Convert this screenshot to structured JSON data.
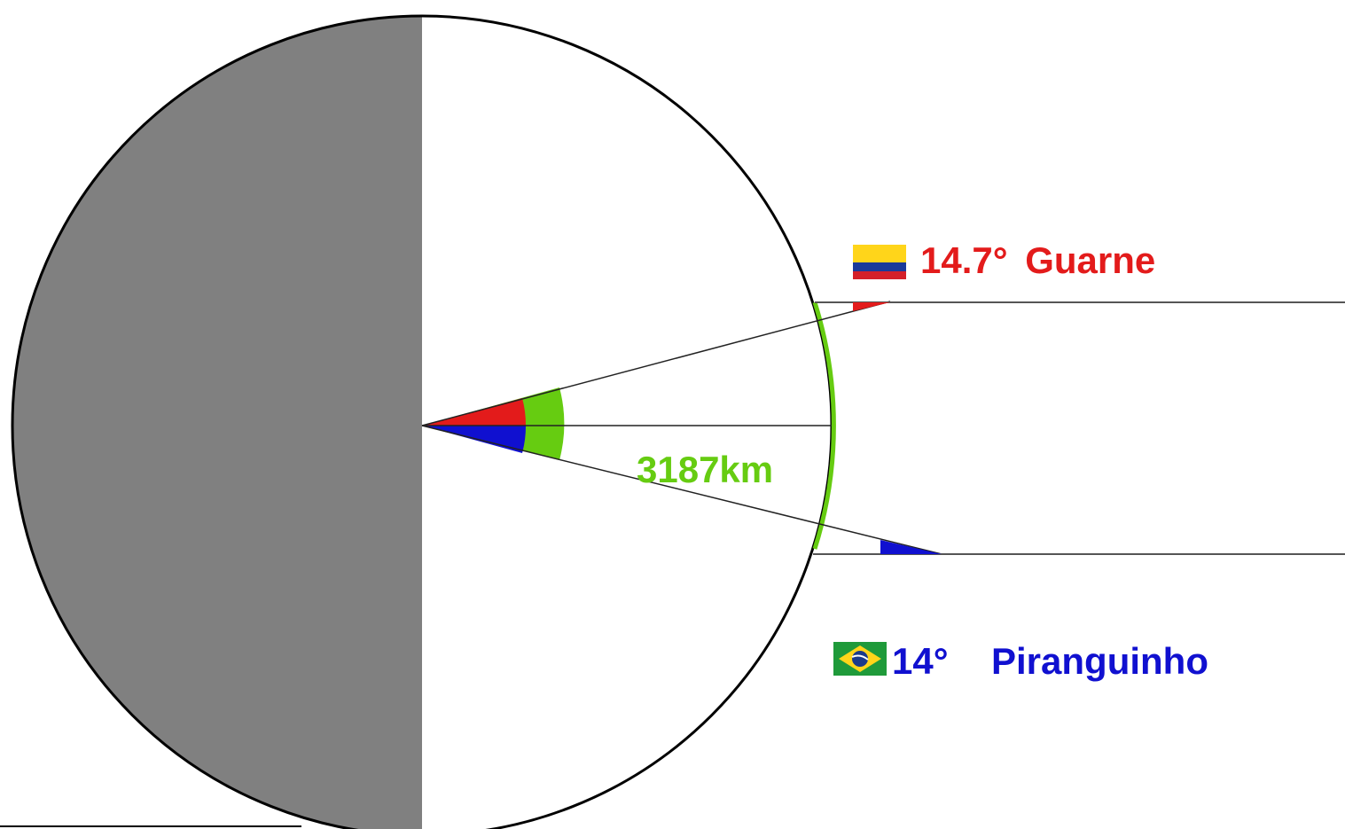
{
  "title_partial": "(cut off)",
  "top_site": {
    "angle": "14.7°",
    "name": "Guarne",
    "color": "#e31b1b",
    "flag": "colombia-flag"
  },
  "bottom_site": {
    "angle": "14°",
    "name": "Piranguinho",
    "color": "#1010d0",
    "flag": "brazil-flag"
  },
  "arc": {
    "distance": "3187km",
    "color": "#66cc11"
  },
  "colors": {
    "shadow": "#808080",
    "outline": "#000000",
    "ray": "#555555",
    "colombia_yellow": "#ffd51a",
    "colombia_blue": "#1a3a9a",
    "colombia_red": "#d4202a",
    "brazil_green": "#1f9a3a",
    "brazil_yellow": "#ffd51a",
    "brazil_blue": "#1a3a8a"
  }
}
